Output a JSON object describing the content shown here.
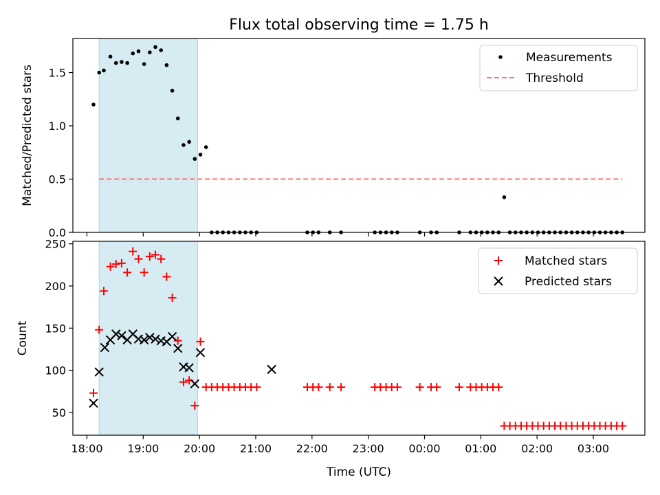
{
  "chart_data": {
    "title": "Flux total observing time = 1.75 h",
    "xlabel": "Time (UTC)",
    "x_tick_labels": [
      "18:00",
      "19:00",
      "20:00",
      "21:00",
      "22:00",
      "23:00",
      "00:00",
      "01:00",
      "02:00",
      "03:00"
    ],
    "highlight_span": {
      "start": "18:13",
      "end": "19:58",
      "color": "#add8e6"
    },
    "panels": [
      {
        "type": "scatter",
        "ylabel": "Matched/Predicted stars",
        "ylim": [
          0,
          1.82
        ],
        "y_ticks": [
          "0.0",
          "0.5",
          "1.0",
          "1.5"
        ],
        "legend": {
          "position": "top-right",
          "entries": [
            "Measurements",
            "Threshold"
          ]
        },
        "series": [
          {
            "name": "Measurements",
            "marker": "dot",
            "color": "#000000",
            "x": [
              "18:07",
              "18:13",
              "18:18",
              "18:25",
              "18:31",
              "18:37",
              "18:43",
              "18:49",
              "18:55",
              "19:01",
              "19:07",
              "19:13",
              "19:19",
              "19:25",
              "19:31",
              "19:37",
              "19:43",
              "19:49",
              "19:55",
              "20:01",
              "20:07",
              "20:13",
              "20:19",
              "20:25",
              "20:31",
              "20:37",
              "20:43",
              "20:49",
              "20:55",
              "21:01",
              "21:55",
              "22:01",
              "22:07",
              "22:19",
              "22:31",
              "23:07",
              "23:13",
              "23:19",
              "23:25",
              "23:31",
              "23:55",
              "00:07",
              "00:13",
              "00:37",
              "00:49",
              "00:55",
              "01:01",
              "01:07",
              "01:13",
              "01:19",
              "01:25",
              "01:31",
              "01:37",
              "01:43",
              "01:49",
              "01:55",
              "02:01",
              "02:07",
              "02:13",
              "02:19",
              "02:25",
              "02:31",
              "02:37",
              "02:43",
              "02:49",
              "02:55",
              "03:01",
              "03:07",
              "03:13",
              "03:19",
              "03:25",
              "03:31"
            ],
            "y": [
              1.2,
              1.5,
              1.52,
              1.65,
              1.59,
              1.6,
              1.59,
              1.68,
              1.7,
              1.58,
              1.69,
              1.74,
              1.71,
              1.57,
              1.33,
              1.07,
              0.82,
              0.85,
              0.69,
              0.73,
              0.8,
              0,
              0,
              0,
              0,
              0,
              0,
              0,
              0,
              0,
              0,
              0,
              0,
              0,
              0,
              0,
              0,
              0,
              0,
              0,
              0,
              0,
              0,
              0,
              0,
              0,
              0,
              0,
              0,
              0,
              0.33,
              0,
              0,
              0,
              0,
              0,
              0,
              0,
              0,
              0,
              0,
              0,
              0,
              0,
              0,
              0,
              0,
              0,
              0,
              0,
              0,
              0
            ]
          },
          {
            "name": "Threshold",
            "style": "dashed",
            "color": "#ff6f6f",
            "x": [
              "18:13",
              "03:31"
            ],
            "y": [
              0.5,
              0.5
            ]
          }
        ]
      },
      {
        "type": "scatter",
        "ylabel": "Count",
        "ylim": [
          23,
          253
        ],
        "y_ticks": [
          "50",
          "100",
          "150",
          "200",
          "250"
        ],
        "legend": {
          "position": "top-right",
          "entries": [
            "Matched stars",
            "Predicted stars"
          ]
        },
        "series": [
          {
            "name": "Matched stars",
            "marker": "plus",
            "color": "#ff0000",
            "x": [
              "18:07",
              "18:13",
              "18:18",
              "18:25",
              "18:31",
              "18:37",
              "18:43",
              "18:49",
              "18:55",
              "19:01",
              "19:07",
              "19:13",
              "19:19",
              "19:25",
              "19:31",
              "19:37",
              "19:43",
              "19:49",
              "19:55",
              "20:01",
              "20:07",
              "20:13",
              "20:19",
              "20:25",
              "20:31",
              "20:37",
              "20:43",
              "20:49",
              "20:55",
              "21:01",
              "21:55",
              "22:01",
              "22:07",
              "22:19",
              "22:31",
              "23:07",
              "23:13",
              "23:19",
              "23:25",
              "23:31",
              "23:55",
              "00:07",
              "00:13",
              "00:37",
              "00:49",
              "00:55",
              "01:01",
              "01:07",
              "01:13",
              "01:19",
              "01:25",
              "01:31",
              "01:37",
              "01:43",
              "01:49",
              "01:55",
              "02:01",
              "02:07",
              "02:13",
              "02:19",
              "02:25",
              "02:31",
              "02:37",
              "02:43",
              "02:49",
              "02:55",
              "03:01",
              "03:07",
              "03:13",
              "03:19",
              "03:25",
              "03:31"
            ],
            "y": [
              73,
              148,
              194,
              223,
              226,
              227,
              216,
              241,
              232,
              216,
              235,
              237,
              232,
              211,
              186,
              135,
              86,
              88,
              58,
              134,
              80,
              80,
              80,
              80,
              80,
              80,
              80,
              80,
              80,
              80,
              80,
              80,
              80,
              80,
              80,
              80,
              80,
              80,
              80,
              80,
              80,
              80,
              80,
              80,
              80,
              80,
              80,
              80,
              80,
              80,
              34,
              34,
              34,
              34,
              34,
              34,
              34,
              34,
              34,
              34,
              34,
              34,
              34,
              34,
              34,
              34,
              34,
              34,
              34,
              34,
              34,
              34
            ]
          },
          {
            "name": "Predicted stars",
            "marker": "cross",
            "color": "#000000",
            "x": [
              "18:07",
              "18:13",
              "18:19",
              "18:25",
              "18:31",
              "18:37",
              "18:43",
              "18:49",
              "18:55",
              "19:01",
              "19:07",
              "19:13",
              "19:19",
              "19:25",
              "19:31",
              "19:37",
              "19:43",
              "19:49",
              "19:55",
              "20:01",
              "21:17"
            ],
            "y": [
              61,
              98,
              127,
              136,
              143,
              141,
              136,
              143,
              137,
              136,
              139,
              137,
              135,
              134,
              140,
              126,
              104,
              103,
              84,
              121,
              101
            ]
          }
        ]
      }
    ]
  }
}
